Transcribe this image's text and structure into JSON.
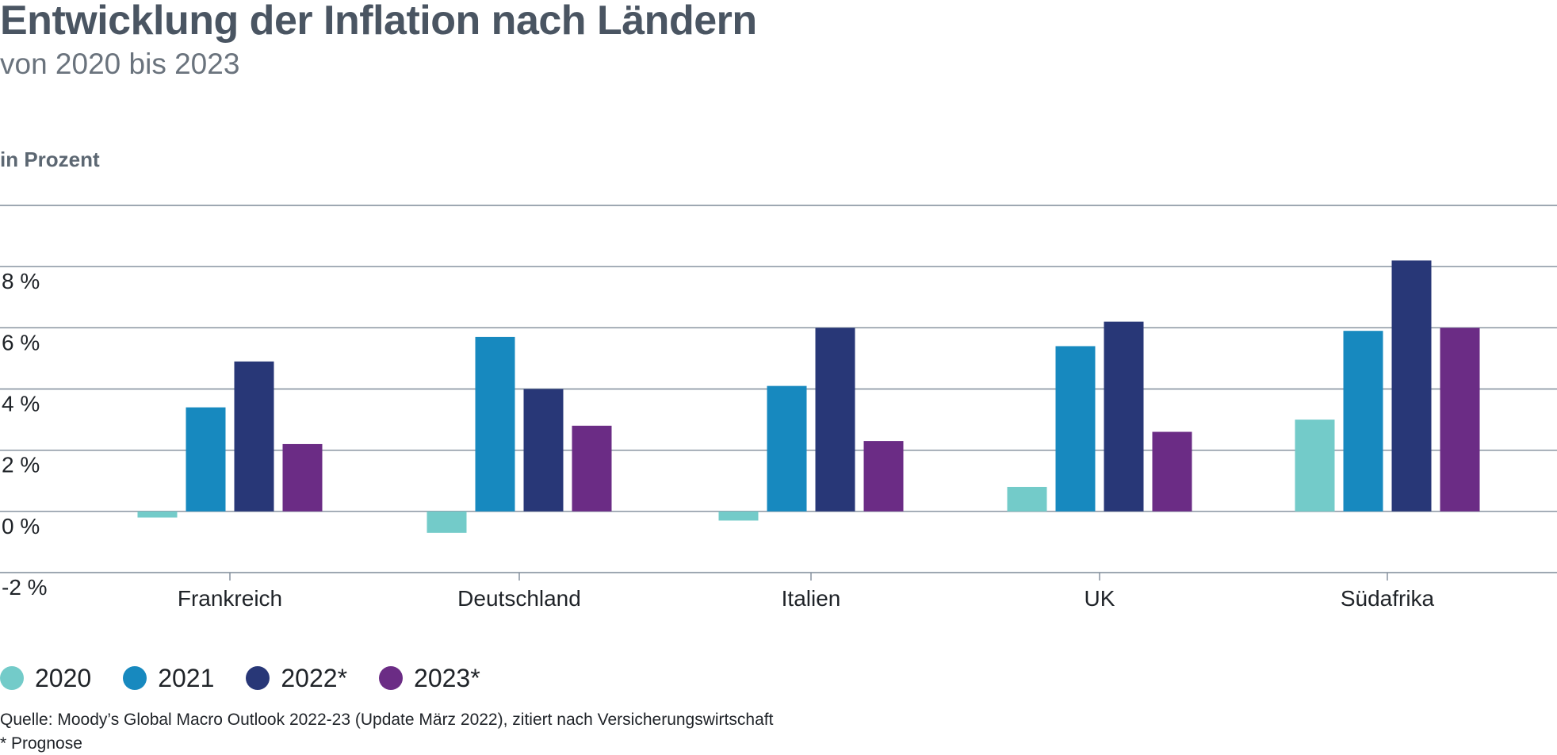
{
  "chart_data": {
    "type": "bar",
    "title": "Entwicklung der Inflation nach Ländern",
    "subtitle": "von 2020 bis 2023",
    "ylabel": "in Prozent",
    "ylim": [
      -2,
      10
    ],
    "yticks": [
      -2,
      0,
      2,
      4,
      6,
      8
    ],
    "ytick_labels": [
      "-2 %",
      "0 %",
      "2 %",
      "4 %",
      "6 %",
      "8 %"
    ],
    "categories": [
      "Frankreich",
      "Deutschland",
      "Italien",
      "UK",
      "Südafrika"
    ],
    "series": [
      {
        "name": "2020",
        "color": "#73cbc9",
        "values": [
          -0.2,
          -0.7,
          -0.3,
          0.8,
          3.0
        ]
      },
      {
        "name": "2021",
        "color": "#1789bf",
        "values": [
          3.4,
          5.7,
          4.1,
          5.4,
          5.9
        ]
      },
      {
        "name": "2022*",
        "color": "#283777",
        "values": [
          4.9,
          4.0,
          6.0,
          6.2,
          8.2
        ]
      },
      {
        "name": "2023*",
        "color": "#6b2c85",
        "values": [
          2.2,
          2.8,
          2.3,
          2.6,
          6.0
        ]
      }
    ],
    "grid": true,
    "legend_position": "bottom-left"
  },
  "footer": {
    "source": "Quelle: Moody’s Global Macro Outlook 2022-23 (Update März 2022), zitiert nach Versicherungswirtschaft",
    "footnote": "* Prognose"
  }
}
